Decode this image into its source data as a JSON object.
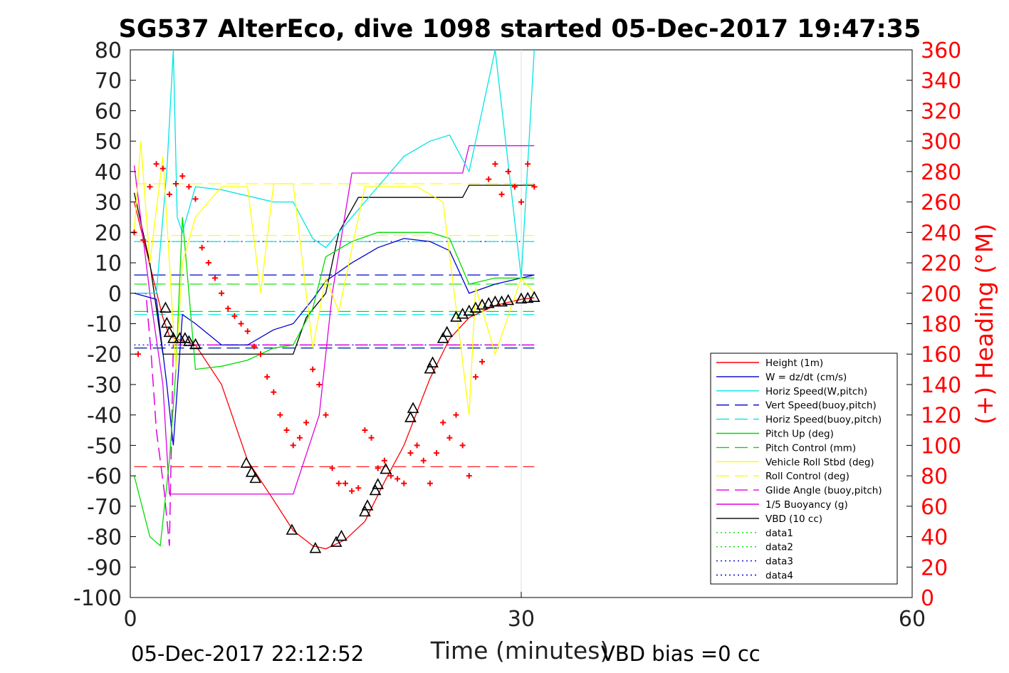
{
  "chart_data": {
    "type": "line",
    "title": "SG537 AlterEco, dive 1098 started 05-Dec-2017 19:47:35",
    "xlabel": "Time (minutes)",
    "ylabel_right": "(+) Heading (°M)",
    "footer_left": "05-Dec-2017 22:12:52",
    "footer_right": "VBD bias =0 cc",
    "xlim": [
      0,
      60
    ],
    "ylim": [
      -100,
      80
    ],
    "ylim_right": [
      0,
      360
    ],
    "x_ticks": [
      0,
      30,
      60
    ],
    "y_ticks": [
      -100,
      -90,
      -80,
      -70,
      -60,
      -50,
      -40,
      -30,
      -20,
      -10,
      0,
      10,
      20,
      30,
      40,
      50,
      60,
      70,
      80
    ],
    "y_ticks_right": [
      0,
      20,
      40,
      60,
      80,
      100,
      120,
      140,
      160,
      180,
      200,
      220,
      240,
      260,
      280,
      300,
      320,
      340,
      360
    ],
    "grid": "vertical at x=30",
    "legend_position": "lower-right",
    "colors": {
      "heading": "#ff0000",
      "height": "#ff0000",
      "w": "#0000cd",
      "horiz_w": "#00e5e5",
      "vert_buoy": "#0000cd",
      "horiz_buoy": "#00e5e5",
      "pitch_up": "#00dd00",
      "pitch_control": "#00dd00",
      "roll": "#ffff00",
      "roll_control": "#ffff00",
      "glide": "#e000e0",
      "buoyancy": "#e000e0",
      "vbd": "#000000"
    },
    "legend": [
      {
        "key": "height",
        "label": "Height (1m)",
        "color": "#ff0000",
        "dash": "solid"
      },
      {
        "key": "w",
        "label": "W = dz/dt (cm/s)",
        "color": "#0000cd",
        "dash": "solid"
      },
      {
        "key": "horiz_w",
        "label": "Horiz Speed(W,pitch)",
        "color": "#00e5e5",
        "dash": "solid"
      },
      {
        "key": "vert_buoy",
        "label": "Vert Speed(buoy,pitch)",
        "color": "#0000cd",
        "dash": "dashed"
      },
      {
        "key": "horiz_buoy",
        "label": "Horiz Speed(buoy,pitch)",
        "color": "#00e5e5",
        "dash": "dashed"
      },
      {
        "key": "pitch_up",
        "label": "Pitch Up (deg)",
        "color": "#00dd00",
        "dash": "solid"
      },
      {
        "key": "pitch_control",
        "label": "Pitch Control (mm)",
        "color": "#00dd00",
        "dash": "dashed"
      },
      {
        "key": "roll",
        "label": "Vehicle Roll Stbd (deg)",
        "color": "#ffff00",
        "dash": "solid"
      },
      {
        "key": "roll_control",
        "label": "Roll Control (deg)",
        "color": "#ffff00",
        "dash": "dashed"
      },
      {
        "key": "glide",
        "label": "Glide Angle (buoy,pitch)",
        "color": "#e000e0",
        "dash": "dashed"
      },
      {
        "key": "buoyancy",
        "label": "1/5 Buoyancy (g)",
        "color": "#e000e0",
        "dash": "solid"
      },
      {
        "key": "vbd",
        "label": "VBD (10 cc)",
        "color": "#000000",
        "dash": "solid"
      },
      {
        "key": "data1",
        "label": "data1",
        "color": "#00dd00",
        "dash": "dotted"
      },
      {
        "key": "data2",
        "label": "data2",
        "color": "#00dd00",
        "dash": "dotted"
      },
      {
        "key": "data3",
        "label": "data3",
        "color": "#0000cd",
        "dash": "dotted"
      },
      {
        "key": "data4",
        "label": "data4",
        "color": "#0000cd",
        "dash": "dotted"
      }
    ],
    "series": [
      {
        "key": "height",
        "x": [
          0.3,
          2.5,
          3.0,
          3.5,
          5.0,
          7.0,
          9.0,
          11.0,
          12.5,
          14.0,
          15.0,
          16.5,
          18.0,
          19.5,
          21.0,
          23.0,
          24.5,
          26.0,
          28.0,
          30.0,
          31.0
        ],
        "y": [
          30,
          -8,
          -14,
          -15,
          -17,
          -30,
          -55,
          -68,
          -78,
          -83,
          -84,
          -81,
          -75,
          -62,
          -50,
          -28,
          -15,
          -8,
          -4,
          -2,
          -1.5
        ]
      },
      {
        "key": "vbd",
        "x": [
          0.3,
          1.5,
          2.5,
          5.0,
          8.0,
          12.5,
          13.5,
          15.0,
          16.0,
          17.5,
          25.5,
          26.0,
          31.0
        ],
        "y": [
          33,
          10,
          -20,
          -20,
          -20,
          -20,
          -8,
          0,
          20,
          31.5,
          31.5,
          35.5,
          35.5
        ]
      },
      {
        "key": "buoyancy",
        "x": [
          0.3,
          1.5,
          2.5,
          3.0,
          8.0,
          12.5,
          14.5,
          15.5,
          17.0,
          25.5,
          26.0,
          31.0
        ],
        "y": [
          42,
          0,
          -30,
          -66,
          -66,
          -66,
          -40,
          0,
          39.5,
          39.5,
          48.5,
          48.5
        ]
      },
      {
        "key": "w",
        "x": [
          0.3,
          2.0,
          2.8,
          3.3,
          4.0,
          5.0,
          7.0,
          9.0,
          11.0,
          12.5,
          14.0,
          15.0,
          17.0,
          19.0,
          21.0,
          23.0,
          24.5,
          26.0,
          28.0,
          30.0,
          31.0
        ],
        "y": [
          0,
          -2,
          -30,
          -50,
          -7,
          -10,
          -17,
          -17,
          -12,
          -10,
          -2,
          4,
          10,
          15,
          18,
          17,
          14,
          0,
          3,
          5,
          6
        ]
      },
      {
        "key": "horiz_w",
        "x": [
          0.3,
          2.0,
          2.8,
          3.3,
          3.6,
          4.0,
          5.0,
          7.0,
          9.0,
          11.0,
          12.5,
          14.0,
          15.0,
          17.0,
          19.0,
          21.0,
          23.0,
          24.5,
          26.0,
          28.0,
          30.0,
          31.0
        ],
        "y": [
          0,
          0,
          40,
          80,
          25,
          20,
          35,
          34,
          32,
          30,
          30,
          18,
          15,
          25,
          35,
          45,
          50,
          52,
          40,
          80,
          5,
          80
        ]
      },
      {
        "key": "pitch_up",
        "x": [
          0.3,
          1.5,
          2.3,
          3.0,
          3.5,
          4.0,
          5.0,
          7.0,
          9.0,
          11.0,
          12.5,
          14.0,
          15.0,
          17.0,
          19.0,
          21.0,
          23.0,
          24.5,
          26.0,
          28.0,
          30.0,
          31.0
        ],
        "y": [
          -60,
          -80,
          -83,
          -55,
          -25,
          25,
          -25,
          -24,
          -22,
          -18,
          -17,
          -5,
          12,
          17,
          20,
          20,
          20,
          18,
          3,
          5,
          5,
          5
        ]
      },
      {
        "key": "roll",
        "x": [
          0.3,
          0.8,
          1.5,
          2.5,
          3.5,
          4.0,
          5.0,
          7.0,
          9.0,
          10.0,
          11.0,
          12.5,
          14.0,
          15.0,
          16.0,
          18.0,
          20.0,
          22.0,
          24.0,
          26.0,
          26.5,
          28.0,
          30.0,
          31.0
        ],
        "y": [
          20,
          50,
          10,
          45,
          -25,
          10,
          25,
          35,
          35,
          0,
          36,
          36,
          -18,
          5,
          -6,
          35,
          35,
          35,
          30,
          -40,
          2,
          -20,
          5,
          0
        ]
      }
    ],
    "roll_control_levels": [
      19,
      36
    ],
    "pitch_control_levels": [
      -18,
      -6,
      3
    ],
    "vert_buoy_levels": [
      -18,
      6
    ],
    "horiz_buoy_levels": [
      -7,
      17
    ],
    "glide_x": [
      0.3,
      1.2,
      1.6,
      2.0,
      2.6,
      3.0,
      3.3,
      4.0,
      31.0
    ],
    "glide_y": [
      0,
      0,
      -20,
      -45,
      -65,
      -83,
      -17,
      -17,
      -17
    ],
    "data1_y": 17,
    "data2_y": -17,
    "ref_line_y": -57,
    "heading_points": [
      [
        0.3,
        240
      ],
      [
        0.6,
        160
      ],
      [
        1.0,
        235
      ],
      [
        1.5,
        270
      ],
      [
        2.0,
        285
      ],
      [
        2.5,
        282
      ],
      [
        3.0,
        265
      ],
      [
        3.5,
        272
      ],
      [
        4.0,
        277
      ],
      [
        4.5,
        270
      ],
      [
        5.0,
        262
      ],
      [
        5.5,
        230
      ],
      [
        6.0,
        220
      ],
      [
        6.5,
        210
      ],
      [
        7.0,
        200
      ],
      [
        7.5,
        190
      ],
      [
        8.0,
        185
      ],
      [
        8.5,
        180
      ],
      [
        9.0,
        175
      ],
      [
        9.5,
        165
      ],
      [
        10.0,
        160
      ],
      [
        10.5,
        145
      ],
      [
        11.0,
        135
      ],
      [
        11.5,
        120
      ],
      [
        12.0,
        110
      ],
      [
        12.5,
        100
      ],
      [
        13.0,
        105
      ],
      [
        13.5,
        115
      ],
      [
        14.0,
        150
      ],
      [
        14.5,
        140
      ],
      [
        15.0,
        120
      ],
      [
        15.5,
        85
      ],
      [
        16.0,
        75
      ],
      [
        16.5,
        75
      ],
      [
        17.0,
        70
      ],
      [
        17.5,
        72
      ],
      [
        18.0,
        110
      ],
      [
        18.5,
        105
      ],
      [
        19.0,
        85
      ],
      [
        19.5,
        90
      ],
      [
        20.0,
        80
      ],
      [
        20.5,
        78
      ],
      [
        21.0,
        75
      ],
      [
        21.5,
        95
      ],
      [
        22.0,
        100
      ],
      [
        22.5,
        90
      ],
      [
        23.0,
        75
      ],
      [
        23.5,
        95
      ],
      [
        24.0,
        115
      ],
      [
        24.5,
        105
      ],
      [
        25.0,
        120
      ],
      [
        25.5,
        100
      ],
      [
        26.0,
        80
      ],
      [
        26.5,
        145
      ],
      [
        27.0,
        155
      ],
      [
        27.5,
        275
      ],
      [
        28.0,
        285
      ],
      [
        28.5,
        265
      ],
      [
        29.0,
        280
      ],
      [
        29.5,
        270
      ],
      [
        30.0,
        260
      ],
      [
        30.5,
        285
      ],
      [
        31.0,
        270
      ]
    ],
    "depth_markers": [
      [
        2.7,
        -5
      ],
      [
        2.8,
        -10
      ],
      [
        3.0,
        -13
      ],
      [
        3.3,
        -15
      ],
      [
        3.8,
        -15
      ],
      [
        4.2,
        -15
      ],
      [
        4.5,
        -16
      ],
      [
        5.0,
        -17
      ],
      [
        8.9,
        -56
      ],
      [
        9.3,
        -59
      ],
      [
        9.6,
        -61
      ],
      [
        12.4,
        -78
      ],
      [
        14.2,
        -84
      ],
      [
        15.8,
        -82
      ],
      [
        16.2,
        -80
      ],
      [
        18.0,
        -72
      ],
      [
        18.2,
        -70
      ],
      [
        18.8,
        -65
      ],
      [
        19.0,
        -63
      ],
      [
        19.6,
        -58
      ],
      [
        21.5,
        -41
      ],
      [
        21.7,
        -38
      ],
      [
        23.0,
        -25
      ],
      [
        23.2,
        -23
      ],
      [
        24.0,
        -15
      ],
      [
        24.3,
        -13
      ],
      [
        25.0,
        -8
      ],
      [
        25.5,
        -7
      ],
      [
        26.0,
        -6
      ],
      [
        26.5,
        -5
      ],
      [
        27.0,
        -4
      ],
      [
        27.5,
        -3.5
      ],
      [
        28.0,
        -3
      ],
      [
        28.5,
        -3
      ],
      [
        29.0,
        -2.5
      ],
      [
        30.0,
        -2
      ],
      [
        30.5,
        -1.8
      ],
      [
        31.0,
        -1.5
      ]
    ]
  }
}
